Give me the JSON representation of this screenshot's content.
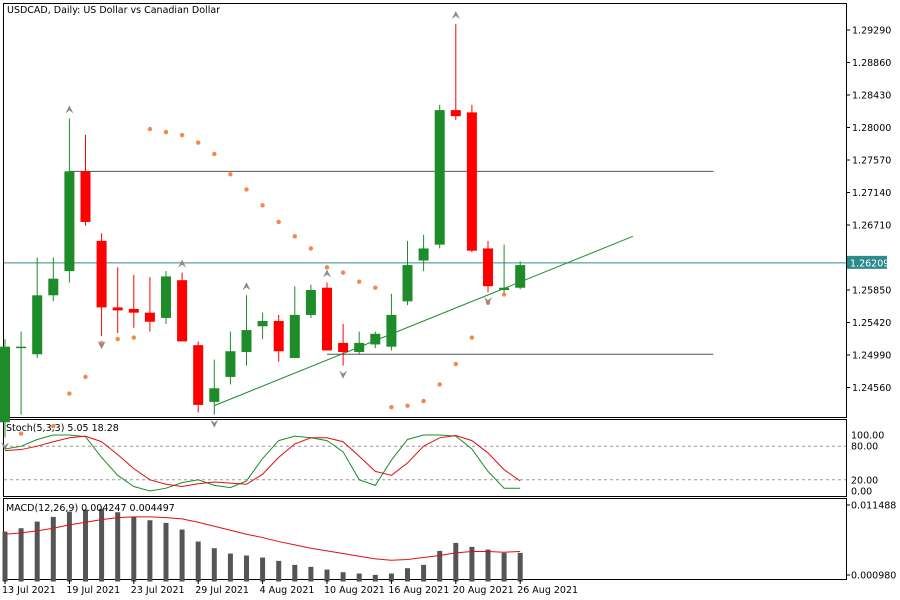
{
  "colors": {
    "bull": "#1e8c28",
    "bear": "#ff0000",
    "psar": "#f4874b",
    "level_line": "#555555",
    "trend_line": "#1e8c28",
    "current_price_line": "#2e8b8b",
    "current_price_bg": "#2e8b8b",
    "stoch_main": "#1e8c28",
    "stoch_signal": "#e01010",
    "macd_hist": "#555555",
    "macd_signal": "#e01010",
    "fractal": "#8a8a8a"
  },
  "chart_data": [
    {
      "type": "candlestick",
      "title": "USDCAD, Daily:  US Dollar vs Canadian Dollar",
      "yticks": [
        "1.29290",
        "1.28860",
        "1.28430",
        "1.28000",
        "1.27570",
        "1.27140",
        "1.26710",
        "1.25850",
        "1.25420",
        "1.24990",
        "1.24560"
      ],
      "current_price_label": "1.26209",
      "current_price": 1.26209,
      "x_labels": [
        "13 Jul 2021",
        "19 Jul 2021",
        "23 Jul 2021",
        "29 Jul 2021",
        "4 Aug 2021",
        "10 Aug 2021",
        "16 Aug 2021",
        "20 Aug 2021",
        "26 Aug 2021"
      ],
      "candles": [
        {
          "o": 1.241,
          "h": 1.252,
          "l": 1.239,
          "c": 1.251
        },
        {
          "o": 1.251,
          "h": 1.253,
          "l": 1.242,
          "c": 1.251
        },
        {
          "o": 1.25,
          "h": 1.2628,
          "l": 1.2495,
          "c": 1.2578
        },
        {
          "o": 1.2578,
          "h": 1.2628,
          "l": 1.257,
          "c": 1.26
        },
        {
          "o": 1.261,
          "h": 1.2812,
          "l": 1.2595,
          "c": 1.2742
        },
        {
          "o": 1.2742,
          "h": 1.279,
          "l": 1.267,
          "c": 1.2675
        },
        {
          "o": 1.265,
          "h": 1.266,
          "l": 1.2524,
          "c": 1.2562
        },
        {
          "o": 1.2562,
          "h": 1.2615,
          "l": 1.2528,
          "c": 1.2558
        },
        {
          "o": 1.256,
          "h": 1.2605,
          "l": 1.2535,
          "c": 1.2555
        },
        {
          "o": 1.2555,
          "h": 1.2602,
          "l": 1.253,
          "c": 1.2543
        },
        {
          "o": 1.2548,
          "h": 1.261,
          "l": 1.254,
          "c": 1.2603
        },
        {
          "o": 1.2598,
          "h": 1.2608,
          "l": 1.2522,
          "c": 1.2517
        },
        {
          "o": 1.2512,
          "h": 1.2517,
          "l": 1.2423,
          "c": 1.2433
        },
        {
          "o": 1.2437,
          "h": 1.2493,
          "l": 1.242,
          "c": 1.2455
        },
        {
          "o": 1.247,
          "h": 1.253,
          "l": 1.246,
          "c": 1.2504
        },
        {
          "o": 1.2503,
          "h": 1.2578,
          "l": 1.2485,
          "c": 1.2532
        },
        {
          "o": 1.2537,
          "h": 1.2555,
          "l": 1.252,
          "c": 1.2544
        },
        {
          "o": 1.2544,
          "h": 1.2552,
          "l": 1.249,
          "c": 1.2504
        },
        {
          "o": 1.2495,
          "h": 1.259,
          "l": 1.2495,
          "c": 1.2552
        },
        {
          "o": 1.2552,
          "h": 1.2592,
          "l": 1.2548,
          "c": 1.2585
        },
        {
          "o": 1.2588,
          "h": 1.2595,
          "l": 1.2505,
          "c": 1.2505
        },
        {
          "o": 1.2515,
          "h": 1.254,
          "l": 1.2485,
          "c": 1.2503
        },
        {
          "o": 1.2503,
          "h": 1.253,
          "l": 1.25,
          "c": 1.2515
        },
        {
          "o": 1.2513,
          "h": 1.253,
          "l": 1.2508,
          "c": 1.2527
        },
        {
          "o": 1.251,
          "h": 1.258,
          "l": 1.2505,
          "c": 1.2552
        },
        {
          "o": 1.257,
          "h": 1.265,
          "l": 1.2565,
          "c": 1.2618
        },
        {
          "o": 1.2624,
          "h": 1.2658,
          "l": 1.261,
          "c": 1.264
        },
        {
          "o": 1.2645,
          "h": 1.283,
          "l": 1.264,
          "c": 1.2823
        },
        {
          "o": 1.2823,
          "h": 1.2937,
          "l": 1.281,
          "c": 1.2815
        },
        {
          "o": 1.282,
          "h": 1.283,
          "l": 1.2635,
          "c": 1.2637
        },
        {
          "o": 1.264,
          "h": 1.265,
          "l": 1.2582,
          "c": 1.259
        },
        {
          "o": 1.2585,
          "h": 1.2645,
          "l": 1.258,
          "c": 1.2588
        },
        {
          "o": 1.2588,
          "h": 1.2623,
          "l": 1.2586,
          "c": 1.2618
        }
      ],
      "psar": [
        {
          "i": 1,
          "v": 1.2395
        },
        {
          "i": 3,
          "v": 1.2405
        },
        {
          "i": 4,
          "v": 1.2448
        },
        {
          "i": 5,
          "v": 1.247
        },
        {
          "i": 6,
          "v": 1.2515
        },
        {
          "i": 7,
          "v": 1.252
        },
        {
          "i": 8,
          "v": 1.2522
        },
        {
          "i": 9,
          "v": 1.2798
        },
        {
          "i": 10,
          "v": 1.2794
        },
        {
          "i": 11,
          "v": 1.279
        },
        {
          "i": 12,
          "v": 1.278
        },
        {
          "i": 13,
          "v": 1.2765
        },
        {
          "i": 14,
          "v": 1.2738
        },
        {
          "i": 15,
          "v": 1.2718
        },
        {
          "i": 16,
          "v": 1.2697
        },
        {
          "i": 17,
          "v": 1.2675
        },
        {
          "i": 18,
          "v": 1.2656
        },
        {
          "i": 19,
          "v": 1.264
        },
        {
          "i": 20,
          "v": 1.2615
        },
        {
          "i": 21,
          "v": 1.2608
        },
        {
          "i": 22,
          "v": 1.2596
        },
        {
          "i": 23,
          "v": 1.2588
        },
        {
          "i": 24,
          "v": 1.243
        },
        {
          "i": 25,
          "v": 1.2432
        },
        {
          "i": 26,
          "v": 1.2438
        },
        {
          "i": 27,
          "v": 1.246
        },
        {
          "i": 28,
          "v": 1.2487
        },
        {
          "i": 29,
          "v": 1.2522
        },
        {
          "i": 30,
          "v": 1.2568
        },
        {
          "i": 31,
          "v": 1.2579
        }
      ],
      "fractals_up": [
        4,
        11,
        15,
        20,
        28
      ],
      "fractals_down": [
        0,
        6,
        13,
        21,
        30
      ],
      "horizontal_levels": [
        {
          "y": 1.2742,
          "i_start": 4,
          "i_end": 44
        },
        {
          "y": 1.25,
          "i_start": 20,
          "i_end": 44
        }
      ],
      "trend_line": {
        "i1": 13,
        "y1": 1.2432,
        "i2": 39,
        "y2": 1.2656
      }
    },
    {
      "type": "line",
      "title": "Stoch(5,3,3) 5.05 18.28",
      "yticks": [
        "100.00",
        "80.00",
        "20.00",
        "0.00"
      ],
      "ylim": [
        0,
        100
      ],
      "series": [
        {
          "key": "main",
          "values": [
            75,
            80,
            92,
            100,
            100,
            97,
            60,
            28,
            8,
            0,
            5,
            15,
            20,
            10,
            6,
            18,
            58,
            90,
            98,
            95,
            90,
            70,
            20,
            10,
            55,
            92,
            100,
            100,
            98,
            75,
            35,
            5,
            5
          ]
        },
        {
          "key": "signal",
          "values": [
            72,
            74,
            80,
            88,
            95,
            98,
            88,
            65,
            40,
            20,
            12,
            8,
            13,
            16,
            14,
            12,
            30,
            60,
            84,
            95,
            95,
            88,
            62,
            35,
            28,
            50,
            80,
            95,
            99,
            90,
            68,
            38,
            18
          ]
        }
      ]
    },
    {
      "type": "bar+line",
      "title": "MACD(12,26,9) 0.004247 0.004497",
      "yticks": [
        "0.011488",
        "0.000980"
      ],
      "ylim": [
        0.0,
        0.0118
      ],
      "histogram": [
        0.0075,
        0.008,
        0.009,
        0.0097,
        0.0105,
        0.0108,
        0.0109,
        0.0104,
        0.0097,
        0.0092,
        0.0088,
        0.0078,
        0.006,
        0.005,
        0.0042,
        0.0039,
        0.0036,
        0.0031,
        0.0025,
        0.0022,
        0.0018,
        0.0014,
        0.0012,
        0.001,
        0.0012,
        0.002,
        0.0025,
        0.0046,
        0.0058,
        0.0052,
        0.0048,
        0.0043,
        0.0043
      ],
      "signal": [
        0.0071,
        0.0073,
        0.0076,
        0.008,
        0.0085,
        0.0089,
        0.0093,
        0.0096,
        0.0097,
        0.0097,
        0.0096,
        0.0094,
        0.0089,
        0.0083,
        0.0077,
        0.0071,
        0.0066,
        0.006,
        0.0055,
        0.005,
        0.0046,
        0.0042,
        0.0038,
        0.0034,
        0.0032,
        0.0033,
        0.0036,
        0.0039,
        0.0043,
        0.0045,
        0.0045,
        0.0044,
        0.0045
      ]
    }
  ]
}
